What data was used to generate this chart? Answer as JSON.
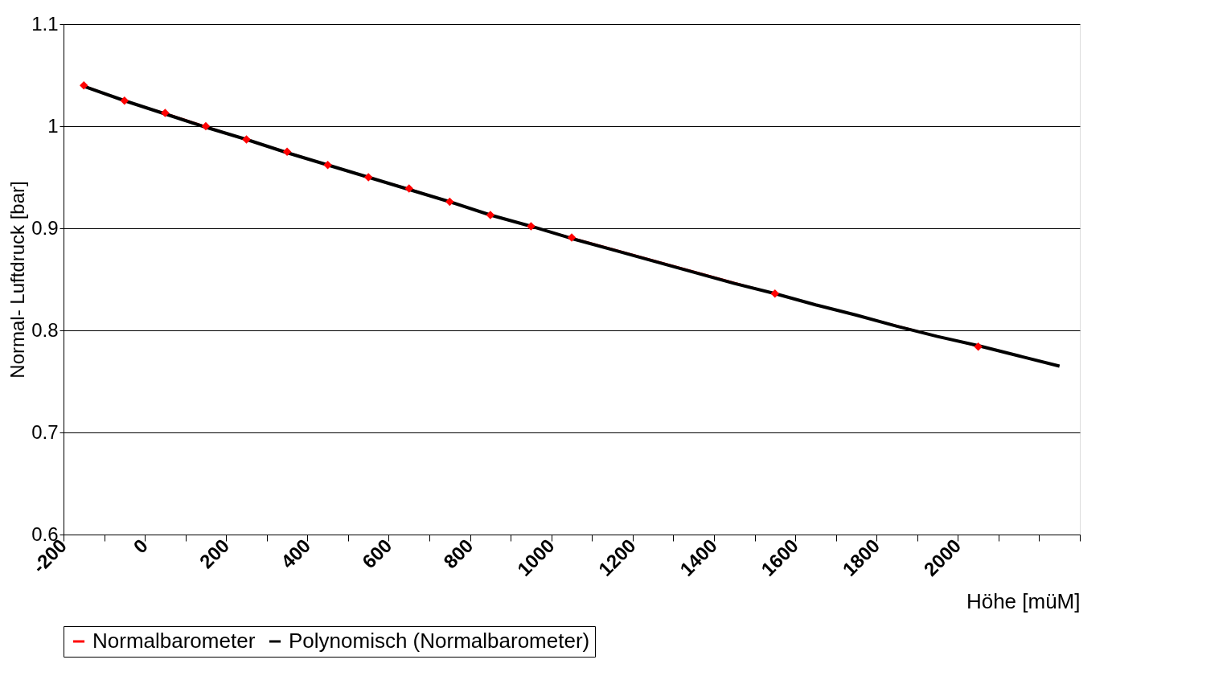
{
  "chart_data": {
    "type": "line",
    "xlabel": "Höhe [müM]",
    "ylabel": "Normal- Luftdruck [bar]",
    "xlim": [
      -200,
      2300
    ],
    "ylim": [
      0.6,
      1.1
    ],
    "xticks": [
      -200,
      {
        "value": -100,
        "label": null
      },
      0,
      {
        "value": 100,
        "label": null
      },
      200,
      {
        "value": 300,
        "label": null
      },
      400,
      {
        "value": 500,
        "label": null
      },
      600,
      {
        "value": 700,
        "label": null
      },
      800,
      {
        "value": 900,
        "label": null
      },
      1000,
      {
        "value": 1100,
        "label": null
      },
      1200,
      {
        "value": 1300,
        "label": null
      },
      1400,
      {
        "value": 1500,
        "label": null
      },
      1600,
      {
        "value": 1700,
        "label": null
      },
      1800,
      {
        "value": 1900,
        "label": null
      },
      2000,
      {
        "value": 2100,
        "label": null
      },
      {
        "value": 2200,
        "label": null
      },
      {
        "value": 2300,
        "label": null
      }
    ],
    "yticks": [
      0.6,
      0.7,
      0.8,
      0.9,
      1,
      1.1
    ],
    "grid": "y",
    "legend": "bottom",
    "series": [
      {
        "name": "Normalbarometer",
        "color": "#ff0000",
        "marker": "diamond",
        "line_style": "solid",
        "x": [
          -150,
          -50,
          50,
          150,
          250,
          350,
          450,
          550,
          650,
          750,
          850,
          950,
          1050,
          1550,
          2050
        ],
        "values": [
          1.04,
          1.025,
          1.013,
          1.0,
          0.987,
          0.975,
          0.962,
          0.95,
          0.939,
          0.926,
          0.913,
          0.902,
          0.891,
          0.836,
          0.784
        ]
      },
      {
        "name": "Polynomisch (Normalbarometer)",
        "color": "#000000",
        "marker": "none",
        "line_style": "solid",
        "x": [
          -150,
          -50,
          50,
          150,
          250,
          350,
          450,
          550,
          650,
          750,
          850,
          950,
          1050,
          1150,
          1250,
          1350,
          1450,
          1550,
          1650,
          1750,
          1850,
          1950,
          2050,
          2150,
          2250
        ],
        "values": [
          1.039,
          1.025,
          1.012,
          0.999,
          0.987,
          0.974,
          0.962,
          0.95,
          0.938,
          0.926,
          0.913,
          0.902,
          0.89,
          0.879,
          0.868,
          0.857,
          0.846,
          0.836,
          0.825,
          0.815,
          0.804,
          0.794,
          0.785,
          0.775,
          0.765
        ]
      }
    ]
  }
}
